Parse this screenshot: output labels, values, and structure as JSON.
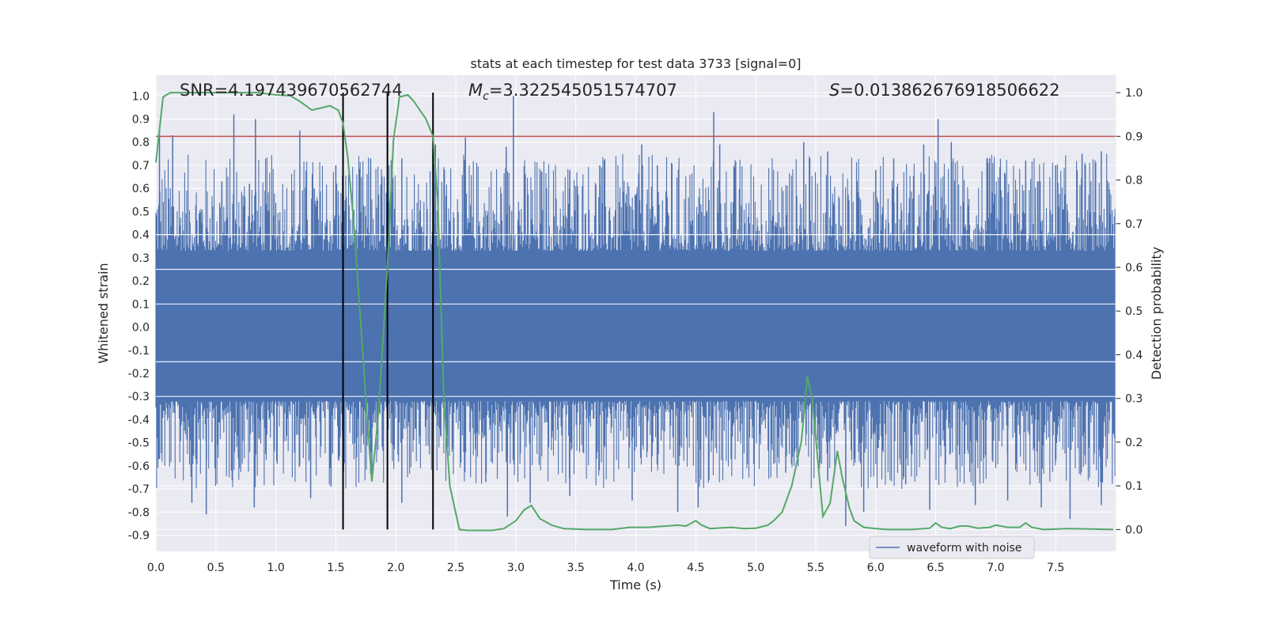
{
  "chart_data": {
    "type": "line",
    "title": "stats at each timestep for test data 3733 [signal=0]",
    "xlabel": "Time (s)",
    "ylabel_left": "Whitened strain",
    "ylabel_right": "Detection probability",
    "xlim": [
      0.0,
      8.0
    ],
    "ylim_left": [
      -0.97,
      1.09
    ],
    "ylim_right": [
      -0.05,
      1.04
    ],
    "x_ticks": [
      "0.0",
      "0.5",
      "1.0",
      "1.5",
      "2.0",
      "2.5",
      "3.0",
      "3.5",
      "4.0",
      "4.5",
      "5.0",
      "5.5",
      "6.0",
      "6.5",
      "7.0",
      "7.5"
    ],
    "y_left_ticks": [
      "1.0",
      "0.9",
      "0.8",
      "0.7",
      "0.6",
      "0.5",
      "0.4",
      "0.3",
      "0.2",
      "0.1",
      "0.0",
      "-0.1",
      "-0.2",
      "-0.3",
      "-0.4",
      "-0.5",
      "-0.6",
      "-0.7",
      "-0.8",
      "-0.9"
    ],
    "y_right_ticks": [
      "1.0",
      "0.9",
      "0.8",
      "0.7",
      "0.6",
      "0.5",
      "0.4",
      "0.3",
      "0.2",
      "0.1",
      "0.0"
    ],
    "grid": true,
    "legend_position": "lower-right",
    "annotations": {
      "snr": "SNR=4.197439670562744",
      "mc_symbol": "M",
      "mc_sub": "c",
      "mc_value": "=3.322545051574707",
      "s_symbol": "S",
      "s_value": "=0.013862676918506622"
    },
    "threshold_right": 0.9,
    "vertical_markers_x": [
      1.56,
      1.93,
      2.31
    ],
    "waveform": {
      "name": "waveform with noise",
      "color": "#4c72b0",
      "core_range": [
        -0.32,
        0.33
      ],
      "peaks_top": [
        [
          0.03,
          0.85
        ],
        [
          0.14,
          0.83
        ],
        [
          0.55,
          0.63
        ],
        [
          0.65,
          0.92
        ],
        [
          0.78,
          0.62
        ],
        [
          0.83,
          0.9
        ],
        [
          1.2,
          0.85
        ],
        [
          1.32,
          0.6
        ],
        [
          1.5,
          0.7
        ],
        [
          1.79,
          0.73
        ],
        [
          2.05,
          0.73
        ],
        [
          2.33,
          0.79
        ],
        [
          2.58,
          0.82
        ],
        [
          2.92,
          0.78
        ],
        [
          2.98,
          1.0
        ],
        [
          3.45,
          0.68
        ],
        [
          3.7,
          0.7
        ],
        [
          4.05,
          0.79
        ],
        [
          4.18,
          0.7
        ],
        [
          4.65,
          0.93
        ],
        [
          4.7,
          0.79
        ],
        [
          5.4,
          0.8
        ],
        [
          5.6,
          0.76
        ],
        [
          6.0,
          0.68
        ],
        [
          6.15,
          0.73
        ],
        [
          6.4,
          0.79
        ],
        [
          6.52,
          0.9
        ],
        [
          6.63,
          0.8
        ],
        [
          6.95,
          0.73
        ],
        [
          7.25,
          0.72
        ],
        [
          7.5,
          0.7
        ],
        [
          7.72,
          0.75
        ],
        [
          7.88,
          0.76
        ]
      ],
      "peaks_bottom": [
        [
          0.03,
          -0.57
        ],
        [
          0.3,
          -0.76
        ],
        [
          0.42,
          -0.81
        ],
        [
          0.82,
          -0.78
        ],
        [
          1.29,
          -0.74
        ],
        [
          1.46,
          -0.69
        ],
        [
          1.8,
          -0.65
        ],
        [
          2.05,
          -0.76
        ],
        [
          2.75,
          -0.67
        ],
        [
          2.93,
          -0.82
        ],
        [
          3.12,
          -0.76
        ],
        [
          3.45,
          -0.73
        ],
        [
          3.97,
          -0.75
        ],
        [
          4.35,
          -0.8
        ],
        [
          4.52,
          -0.78
        ],
        [
          5.25,
          -0.63
        ],
        [
          5.6,
          -0.66
        ],
        [
          5.75,
          -0.86
        ],
        [
          5.9,
          -0.8
        ],
        [
          6.25,
          -0.68
        ],
        [
          6.45,
          -0.79
        ],
        [
          6.83,
          -0.77
        ],
        [
          7.1,
          -0.75
        ],
        [
          7.38,
          -0.78
        ],
        [
          7.62,
          -0.83
        ],
        [
          7.88,
          -0.77
        ]
      ]
    },
    "probability": {
      "color": "#55a868",
      "points": [
        [
          0.0,
          0.84
        ],
        [
          0.06,
          0.99
        ],
        [
          0.12,
          1.0
        ],
        [
          0.3,
          1.0
        ],
        [
          0.6,
          1.0
        ],
        [
          0.85,
          1.0
        ],
        [
          1.0,
          0.995
        ],
        [
          1.12,
          0.993
        ],
        [
          1.2,
          0.98
        ],
        [
          1.25,
          0.97
        ],
        [
          1.3,
          0.96
        ],
        [
          1.38,
          0.965
        ],
        [
          1.45,
          0.97
        ],
        [
          1.52,
          0.96
        ],
        [
          1.56,
          0.93
        ],
        [
          1.6,
          0.85
        ],
        [
          1.65,
          0.7
        ],
        [
          1.7,
          0.5
        ],
        [
          1.75,
          0.3
        ],
        [
          1.8,
          0.11
        ],
        [
          1.85,
          0.25
        ],
        [
          1.88,
          0.38
        ],
        [
          1.93,
          0.6
        ],
        [
          1.98,
          0.89
        ],
        [
          2.03,
          0.99
        ],
        [
          2.1,
          0.995
        ],
        [
          2.15,
          0.98
        ],
        [
          2.25,
          0.94
        ],
        [
          2.31,
          0.9
        ],
        [
          2.35,
          0.75
        ],
        [
          2.4,
          0.3
        ],
        [
          2.45,
          0.1
        ],
        [
          2.53,
          0.0
        ],
        [
          2.6,
          -0.002
        ],
        [
          2.7,
          -0.002
        ],
        [
          2.8,
          -0.002
        ],
        [
          2.9,
          0.002
        ],
        [
          3.0,
          0.02
        ],
        [
          3.07,
          0.045
        ],
        [
          3.13,
          0.055
        ],
        [
          3.2,
          0.025
        ],
        [
          3.3,
          0.01
        ],
        [
          3.4,
          0.002
        ],
        [
          3.6,
          0.0
        ],
        [
          3.8,
          0.0
        ],
        [
          3.95,
          0.005
        ],
        [
          4.1,
          0.005
        ],
        [
          4.25,
          0.008
        ],
        [
          4.35,
          0.01
        ],
        [
          4.42,
          0.008
        ],
        [
          4.5,
          0.02
        ],
        [
          4.55,
          0.01
        ],
        [
          4.62,
          0.002
        ],
        [
          4.72,
          0.004
        ],
        [
          4.8,
          0.005
        ],
        [
          4.9,
          0.002
        ],
        [
          5.0,
          0.003
        ],
        [
          5.1,
          0.01
        ],
        [
          5.15,
          0.02
        ],
        [
          5.22,
          0.04
        ],
        [
          5.3,
          0.1
        ],
        [
          5.38,
          0.2
        ],
        [
          5.43,
          0.35
        ],
        [
          5.47,
          0.3
        ],
        [
          5.52,
          0.15
        ],
        [
          5.56,
          0.03
        ],
        [
          5.62,
          0.06
        ],
        [
          5.68,
          0.18
        ],
        [
          5.72,
          0.12
        ],
        [
          5.78,
          0.05
        ],
        [
          5.82,
          0.02
        ],
        [
          5.9,
          0.005
        ],
        [
          6.0,
          0.002
        ],
        [
          6.1,
          0.0
        ],
        [
          6.3,
          0.0
        ],
        [
          6.45,
          0.003
        ],
        [
          6.5,
          0.015
        ],
        [
          6.55,
          0.005
        ],
        [
          6.62,
          0.002
        ],
        [
          6.7,
          0.008
        ],
        [
          6.77,
          0.008
        ],
        [
          6.85,
          0.003
        ],
        [
          6.95,
          0.005
        ],
        [
          7.0,
          0.01
        ],
        [
          7.1,
          0.005
        ],
        [
          7.2,
          0.005
        ],
        [
          7.25,
          0.015
        ],
        [
          7.3,
          0.005
        ],
        [
          7.4,
          0.0
        ],
        [
          7.6,
          0.002
        ],
        [
          7.8,
          0.001
        ],
        [
          7.98,
          0.0
        ]
      ]
    }
  }
}
